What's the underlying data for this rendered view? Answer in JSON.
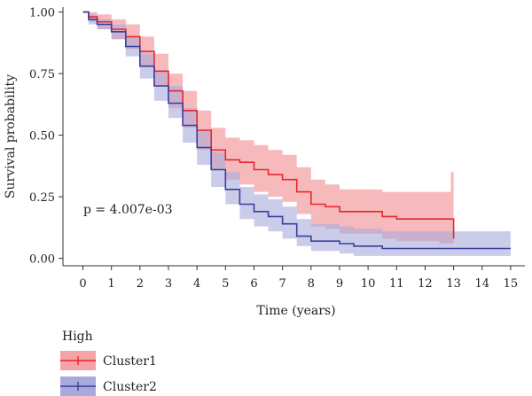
{
  "chart_data": {
    "type": "line",
    "xlabel": "Time (years)",
    "ylabel": "Survival probability",
    "xlim": [
      -0.7,
      15.5
    ],
    "ylim": [
      -0.03,
      1.02
    ],
    "x_ticks": [
      0,
      1,
      2,
      3,
      4,
      5,
      6,
      7,
      8,
      9,
      10,
      11,
      12,
      13,
      14,
      15
    ],
    "y_ticks": [
      0.0,
      0.25,
      0.5,
      0.75,
      1.0
    ],
    "y_tick_labels": [
      "0.00",
      "0.25",
      "0.50",
      "0.75",
      "1.00"
    ],
    "annotation": "p = 4.007e-03",
    "legend": {
      "title": "High",
      "placement": "bottom-left",
      "entries": [
        "Cluster1",
        "Cluster2"
      ]
    },
    "series": [
      {
        "name": "Cluster1",
        "color": "#e8262d",
        "band_color": "#f4a3a6",
        "x": [
          0,
          0.2,
          0.5,
          1,
          1.5,
          2,
          2.5,
          3,
          3.5,
          4,
          4.5,
          5,
          5.5,
          6,
          6.5,
          7,
          7.5,
          8,
          8.5,
          9,
          9.5,
          10,
          10.5,
          11,
          11.5,
          12,
          12.5,
          12.9,
          13.0
        ],
        "y": [
          1.0,
          0.98,
          0.96,
          0.93,
          0.9,
          0.84,
          0.76,
          0.68,
          0.6,
          0.52,
          0.44,
          0.4,
          0.39,
          0.36,
          0.34,
          0.32,
          0.27,
          0.22,
          0.21,
          0.19,
          0.19,
          0.19,
          0.17,
          0.16,
          0.16,
          0.16,
          0.16,
          0.16,
          0.08
        ],
        "lower": [
          1.0,
          0.96,
          0.93,
          0.89,
          0.85,
          0.78,
          0.7,
          0.61,
          0.53,
          0.44,
          0.36,
          0.32,
          0.3,
          0.27,
          0.25,
          0.23,
          0.18,
          0.13,
          0.12,
          0.1,
          0.1,
          0.1,
          0.08,
          0.07,
          0.07,
          0.07,
          0.06,
          0.06,
          0.02
        ],
        "upper": [
          1.0,
          1.0,
          0.99,
          0.97,
          0.95,
          0.9,
          0.83,
          0.75,
          0.68,
          0.6,
          0.53,
          0.49,
          0.48,
          0.46,
          0.44,
          0.42,
          0.37,
          0.32,
          0.3,
          0.28,
          0.28,
          0.28,
          0.27,
          0.27,
          0.27,
          0.27,
          0.27,
          0.35,
          0.3
        ]
      },
      {
        "name": "Cluster2",
        "color": "#3a3f9e",
        "band_color": "#a9aadb",
        "x": [
          0,
          0.2,
          0.5,
          1,
          1.5,
          2,
          2.5,
          3,
          3.5,
          4,
          4.5,
          5,
          5.5,
          6,
          6.5,
          7,
          7.5,
          8,
          8.5,
          9,
          9.5,
          10,
          10.5,
          11,
          12,
          13,
          14,
          15
        ],
        "y": [
          1.0,
          0.97,
          0.95,
          0.92,
          0.86,
          0.78,
          0.7,
          0.63,
          0.54,
          0.45,
          0.36,
          0.28,
          0.22,
          0.19,
          0.17,
          0.14,
          0.09,
          0.07,
          0.07,
          0.06,
          0.05,
          0.05,
          0.04,
          0.04,
          0.04,
          0.04,
          0.04,
          0.04
        ],
        "lower": [
          1.0,
          0.95,
          0.93,
          0.89,
          0.82,
          0.73,
          0.64,
          0.57,
          0.47,
          0.38,
          0.29,
          0.22,
          0.16,
          0.13,
          0.11,
          0.08,
          0.05,
          0.03,
          0.03,
          0.02,
          0.01,
          0.01,
          0.01,
          0.01,
          0.01,
          0.01,
          0.01,
          0.01
        ],
        "upper": [
          1.0,
          0.99,
          0.97,
          0.95,
          0.9,
          0.83,
          0.76,
          0.7,
          0.61,
          0.52,
          0.43,
          0.35,
          0.29,
          0.26,
          0.24,
          0.21,
          0.16,
          0.14,
          0.14,
          0.13,
          0.12,
          0.12,
          0.11,
          0.11,
          0.11,
          0.11,
          0.11,
          0.11
        ]
      }
    ]
  }
}
